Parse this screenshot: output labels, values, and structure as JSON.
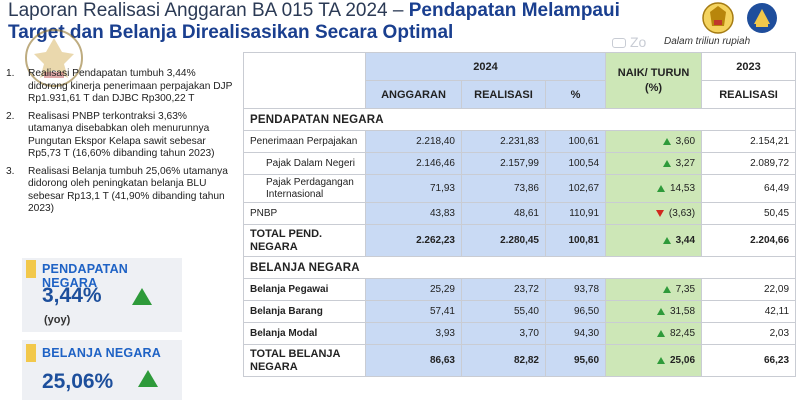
{
  "title": {
    "part1": "Laporan Realisasi Anggaran BA 015 TA 2024 – ",
    "part2": "Pendapatan Melampaui",
    "line2": "Target dan Belanja Direalisasikan Secara Optimal"
  },
  "watermark": "Zo",
  "unit_note": "Dalam triliun rupiah",
  "notes": [
    {
      "num": "1.",
      "text": "Realisasi Pendapatan tumbuh 3,44% didorong kinerja penerimaan perpajakan DJP Rp1.931,61 T dan DJBC Rp300,22 T"
    },
    {
      "num": "2.",
      "text": "Realisasi PNBP terkontraksi 3,63% utamanya disebabkan oleh menurunnya Pungutan Ekspor Kelapa sawit sebesar Rp5,73 T (16,60% dibanding tahun 2023)"
    },
    {
      "num": "3.",
      "text": "Realisasi Belanja tumbuh 25,06% utamanya didorong oleh peningkatan belanja BLU sebesar Rp13,1 T (41,90% dibanding tahun 2023)"
    }
  ],
  "kpis": [
    {
      "label": "PENDAPATAN NEGARA",
      "value": "3,44%",
      "sub": "(yoy)"
    },
    {
      "label": "BELANJA NEGARA",
      "value": "25,06%",
      "sub": ""
    }
  ],
  "table": {
    "year_2024": "2024",
    "col_anggaran": "ANGGARAN",
    "col_realisasi": "REALISASI",
    "col_pct": "%",
    "col_naik": "NAIK/ TURUN (%)",
    "year_2023": "2023",
    "col_realisasi_2023": "REALISASI",
    "rows": [
      {
        "type": "section",
        "label": "PENDAPATAN NEGARA"
      },
      {
        "type": "row",
        "label": "Penerimaan Perpajakan",
        "anggaran": "2.218,40",
        "realisasi": "2.231,83",
        "pct": "100,61",
        "naik": "3,60",
        "dir": "up",
        "r2023": "2.154,21"
      },
      {
        "type": "row",
        "indent": true,
        "label": "Pajak Dalam Negeri",
        "anggaran": "2.146,46",
        "realisasi": "2.157,99",
        "pct": "100,54",
        "naik": "3,27",
        "dir": "up",
        "r2023": "2.089,72"
      },
      {
        "type": "row",
        "indent": true,
        "label": "Pajak Perdagangan Internasional",
        "anggaran": "71,93",
        "realisasi": "73,86",
        "pct": "102,67",
        "naik": "14,53",
        "dir": "up",
        "r2023": "64,49"
      },
      {
        "type": "row",
        "label": "PNBP",
        "anggaran": "43,83",
        "realisasi": "48,61",
        "pct": "110,91",
        "naik": "(3,63)",
        "dir": "down",
        "r2023": "50,45"
      },
      {
        "type": "total",
        "label": "TOTAL PEND. NEGARA",
        "anggaran": "2.262,23",
        "realisasi": "2.280,45",
        "pct": "100,81",
        "naik": "3,44",
        "dir": "up",
        "r2023": "2.204,66"
      },
      {
        "type": "section",
        "label": "BELANJA NEGARA"
      },
      {
        "type": "row",
        "bold": true,
        "label": "Belanja Pegawai",
        "anggaran": "25,29",
        "realisasi": "23,72",
        "pct": "93,78",
        "naik": "7,35",
        "dir": "up",
        "r2023": "22,09"
      },
      {
        "type": "row",
        "bold": true,
        "label": "Belanja Barang",
        "anggaran": "57,41",
        "realisasi": "55,40",
        "pct": "96,50",
        "naik": "31,58",
        "dir": "up",
        "r2023": "42,11"
      },
      {
        "type": "row",
        "bold": true,
        "label": "Belanja Modal",
        "anggaran": "3,93",
        "realisasi": "3,70",
        "pct": "94,30",
        "naik": "82,45",
        "dir": "up",
        "r2023": "2,03"
      },
      {
        "type": "total",
        "label": "TOTAL BELANJA NEGARA",
        "anggaran": "86,63",
        "realisasi": "82,82",
        "pct": "95,60",
        "naik": "25,06",
        "dir": "up",
        "r2023": "66,23"
      }
    ]
  },
  "colors": {
    "title_accent": "#1a3f8f",
    "budget_cols": "#c9daf4",
    "change_col": "#cde7b7",
    "up": "#2e9a3a",
    "down": "#d0281e",
    "kpi_bar": "#f2c84b"
  }
}
